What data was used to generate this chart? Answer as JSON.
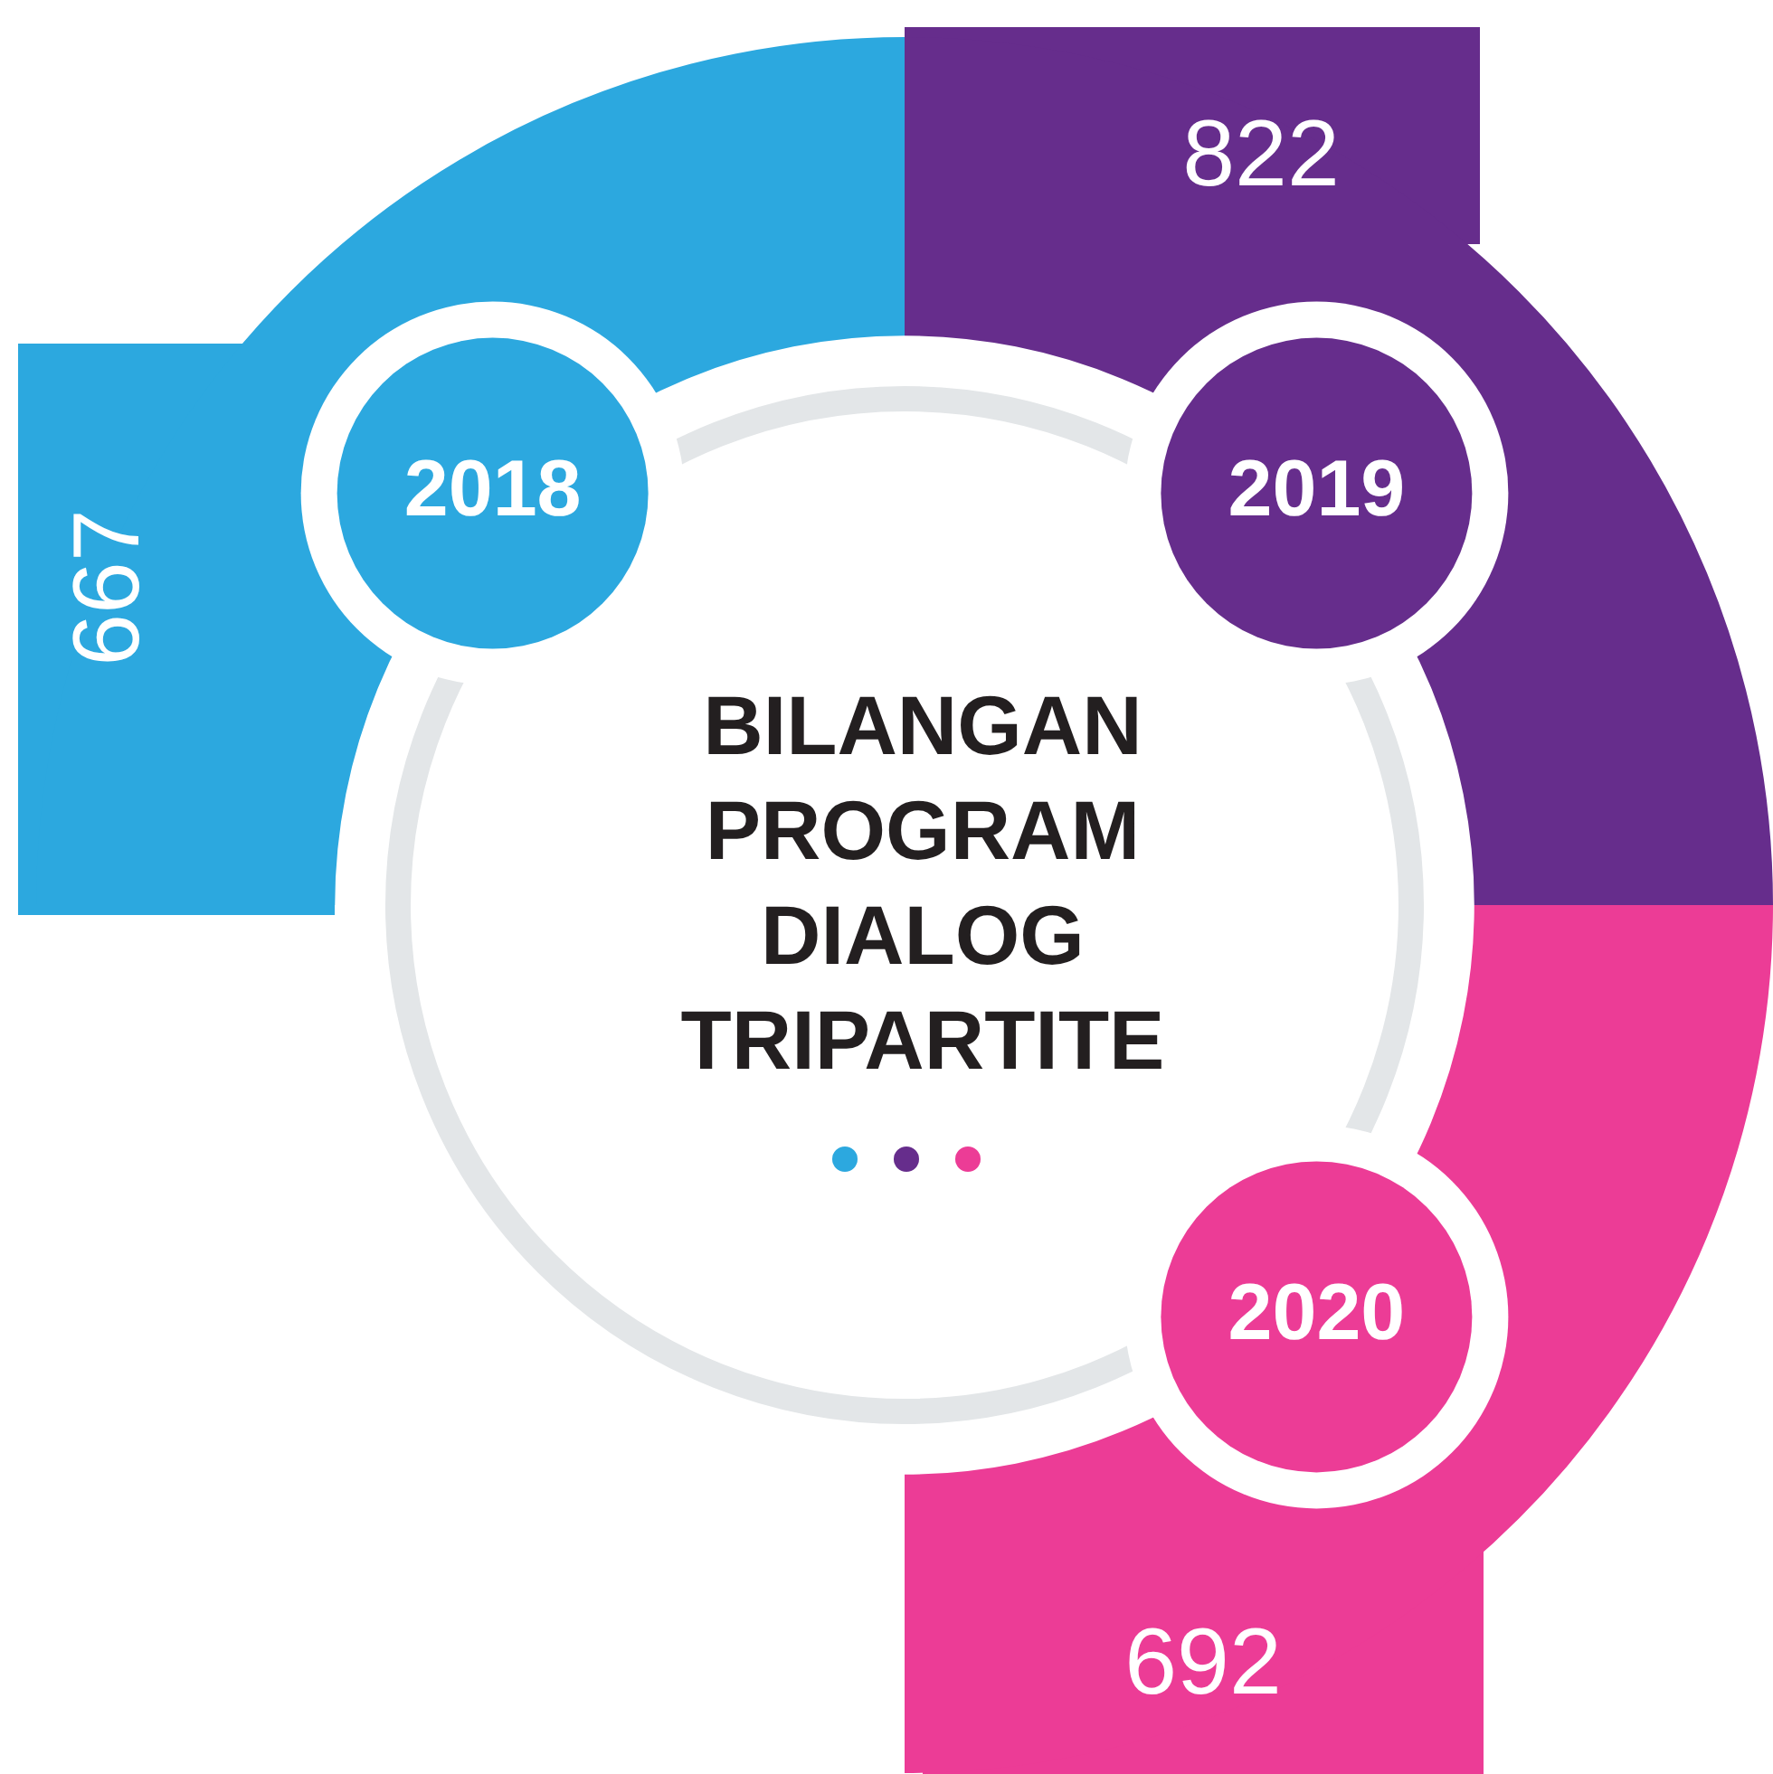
{
  "chart_data": {
    "type": "other",
    "title": "BILANGAN PROGRAM DIALOG TRIPARTITE",
    "categories": [
      "2018",
      "2019",
      "2020"
    ],
    "values": [
      667,
      822,
      692
    ],
    "colors": [
      "#2ca8df",
      "#662d8c",
      "#ec3c96"
    ],
    "data_labels": true
  }
}
